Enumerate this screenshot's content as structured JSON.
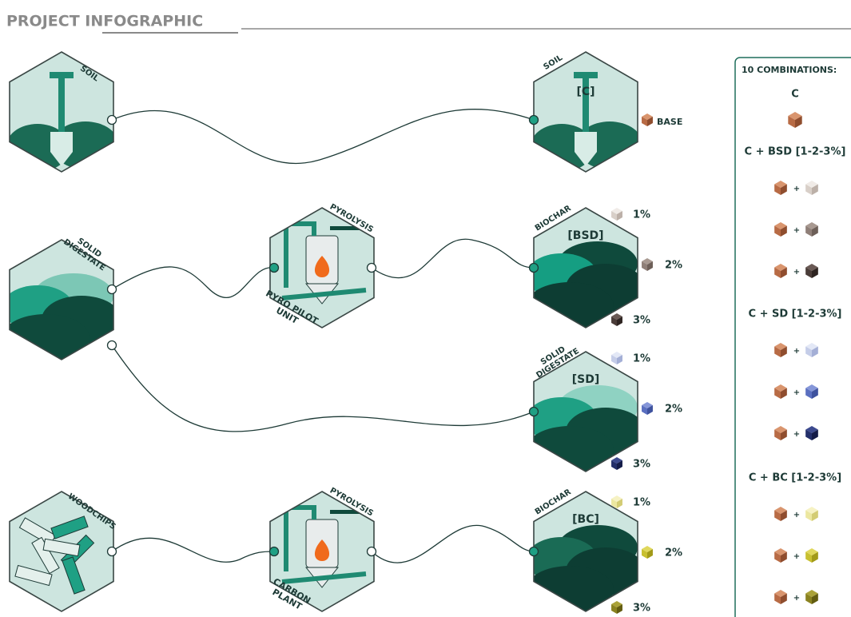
{
  "header": {
    "title": "PROJECT INFOGRAPHIC"
  },
  "inputs": [
    {
      "lines": [
        "SOIL"
      ]
    },
    {
      "lines": [
        "SOLID",
        "DIGESTATE"
      ]
    },
    {
      "lines": [
        "WOODCHIPS"
      ]
    }
  ],
  "processes": [
    {
      "label": "PYROLYSIS",
      "caption": [
        "PYRO PILOT",
        "UNIT"
      ]
    },
    {
      "label": "PYROLYSIS",
      "caption": [
        "CARBON",
        "PLANT"
      ]
    }
  ],
  "outputs": [
    {
      "lines": [
        "SOIL"
      ],
      "code": "[C]",
      "doses": [
        "BASE"
      ]
    },
    {
      "lines": [
        "BIOCHAR"
      ],
      "code": "[BSD]",
      "doses": [
        "1%",
        "2%",
        "3%"
      ]
    },
    {
      "lines": [
        "SOLID",
        "DIGESTATE"
      ],
      "code": "[SD]",
      "doses": [
        "1%",
        "2%",
        "3%"
      ]
    },
    {
      "lines": [
        "BIOCHAR"
      ],
      "code": "[BC]",
      "doses": [
        "1%",
        "2%",
        "3%"
      ]
    }
  ],
  "panel": {
    "title": "10 COMBINATIONS:",
    "plus": "+",
    "groups": [
      {
        "label": "C"
      },
      {
        "label": "C + BSD [1-2-3%]"
      },
      {
        "label": "C + SD [1-2-3%]"
      },
      {
        "label": "C + BC [1-2-3%]"
      }
    ]
  }
}
